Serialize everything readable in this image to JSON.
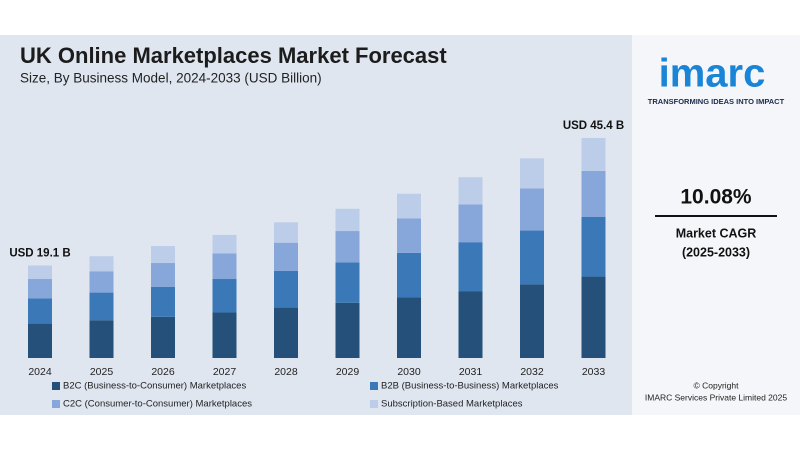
{
  "chart_data": {
    "type": "stacked_bar",
    "title": "UK Online Marketplaces Market Forecast",
    "subtitle": "Size, By Business Model, 2024-2033 (USD Billion)",
    "categories": [
      "2024",
      "2025",
      "2026",
      "2027",
      "2028",
      "2029",
      "2030",
      "2031",
      "2032",
      "2033"
    ],
    "series": [
      {
        "name": "B2C (Business-to-Consumer) Marketplaces",
        "color": "#24507a",
        "values": [
          7.1,
          7.8,
          8.5,
          9.4,
          10.4,
          11.4,
          12.5,
          13.8,
          15.2,
          16.8
        ]
      },
      {
        "name": "B2B (Business-to-Business) Marketplaces",
        "color": "#3a78b8",
        "values": [
          5.2,
          5.7,
          6.2,
          6.9,
          7.6,
          8.3,
          9.2,
          10.1,
          11.1,
          12.3
        ]
      },
      {
        "name": "C2C (Consumer-to-Consumer) Marketplaces",
        "color": "#87a6d9",
        "values": [
          4.0,
          4.4,
          4.9,
          5.3,
          5.8,
          6.5,
          7.1,
          7.8,
          8.7,
          9.5
        ]
      },
      {
        "name": "Subscription-Based Marketplaces",
        "color": "#bccde9",
        "values": [
          2.8,
          3.1,
          3.5,
          3.8,
          4.2,
          4.6,
          5.1,
          5.6,
          6.2,
          6.8
        ]
      }
    ],
    "annotations": [
      {
        "category": "2024",
        "text": "USD 19.1 B"
      },
      {
        "category": "2033",
        "text": "USD 45.4 B"
      }
    ]
  },
  "sidebar": {
    "logo": "imarc",
    "tagline": "TRANSFORMING IDEAS INTO IMPACT",
    "cagr": "10.08%",
    "cagr_label": "Market CAGR",
    "cagr_period": "(2025-2033)",
    "copyright": "© Copyright",
    "company": "IMARC Services Private Limited 2025"
  }
}
